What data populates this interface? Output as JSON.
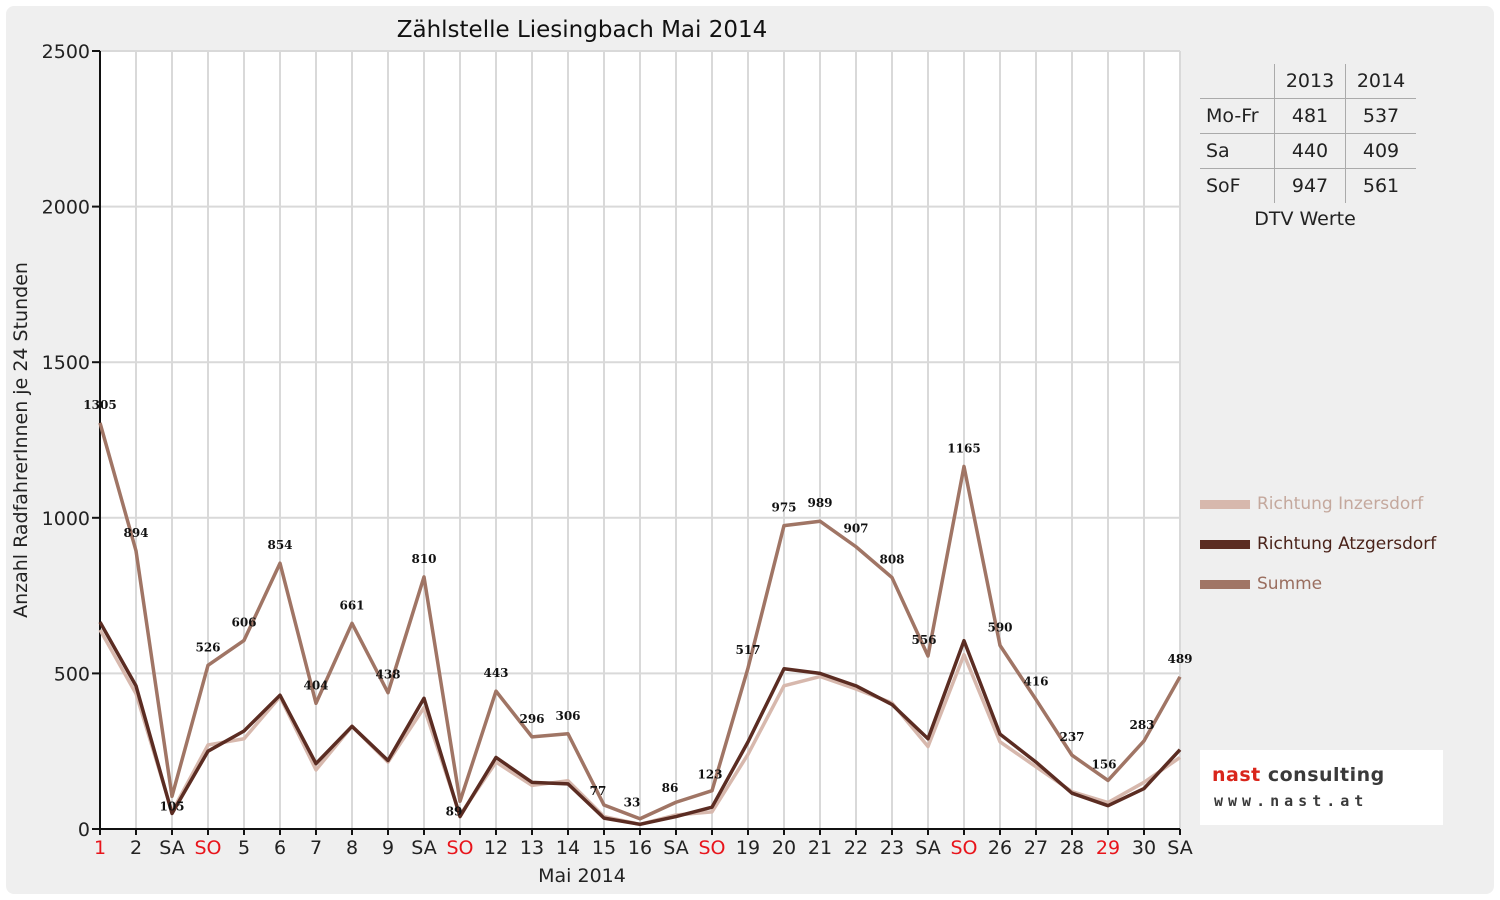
{
  "chart_data": {
    "type": "line",
    "title": "Zählstelle Liesingbach Mai 2014",
    "xlabel": "Mai 2014",
    "ylabel": "Anzahl RadfahrerInnen je 24 Stunden",
    "ylim": [
      0,
      2500
    ],
    "yticks": [
      0,
      500,
      1000,
      1500,
      2000,
      2500
    ],
    "grid": true,
    "legend_position": "right",
    "categories": [
      "1",
      "2",
      "SA",
      "SO",
      "5",
      "6",
      "7",
      "8",
      "9",
      "SA",
      "SO",
      "12",
      "13",
      "14",
      "15",
      "16",
      "SA",
      "SO",
      "19",
      "20",
      "21",
      "22",
      "23",
      "SA",
      "SO",
      "26",
      "27",
      "28",
      "29",
      "30",
      "SA"
    ],
    "highlight_categories": [
      0,
      3,
      10,
      17,
      24,
      28
    ],
    "highlight_color": "#e8141b",
    "series": [
      {
        "name": "Richtung Inzersdorf",
        "color": "#d7b8ad",
        "values": [
          640,
          435,
          55,
          270,
          290,
          425,
          190,
          330,
          215,
          390,
          45,
          215,
          140,
          155,
          40,
          15,
          45,
          55,
          240,
          460,
          490,
          450,
          405,
          265,
          560,
          280,
          200,
          120,
          85,
          150,
          230
        ]
      },
      {
        "name": "Richtung Atzgersdorf",
        "color": "#5b2c22",
        "values": [
          665,
          460,
          50,
          250,
          315,
          430,
          210,
          330,
          220,
          420,
          40,
          230,
          150,
          145,
          35,
          15,
          40,
          70,
          280,
          515,
          500,
          460,
          400,
          290,
          605,
          305,
          215,
          115,
          75,
          130,
          255
        ]
      },
      {
        "name": "Summe",
        "color": "#a07565",
        "label_color": "#111111",
        "values": [
          1305,
          894,
          105,
          526,
          606,
          854,
          404,
          661,
          438,
          810,
          89,
          443,
          296,
          306,
          77,
          33,
          86,
          123,
          517,
          975,
          989,
          907,
          808,
          556,
          1165,
          590,
          416,
          237,
          156,
          283,
          489
        ]
      }
    ]
  },
  "dtv_table": {
    "caption": "DTV Werte",
    "headers": [
      "2013",
      "2014"
    ],
    "rows": [
      {
        "label": "Mo-Fr",
        "v2013": "481",
        "v2014": "537"
      },
      {
        "label": "Sa",
        "v2013": "440",
        "v2014": "409"
      },
      {
        "label": "SoF",
        "v2013": "947",
        "v2014": "561"
      }
    ]
  },
  "logo": {
    "name_part1": "nast",
    "name_part2": " consulting",
    "url": "www.nast.at",
    "accent_color": "#d9261c"
  }
}
